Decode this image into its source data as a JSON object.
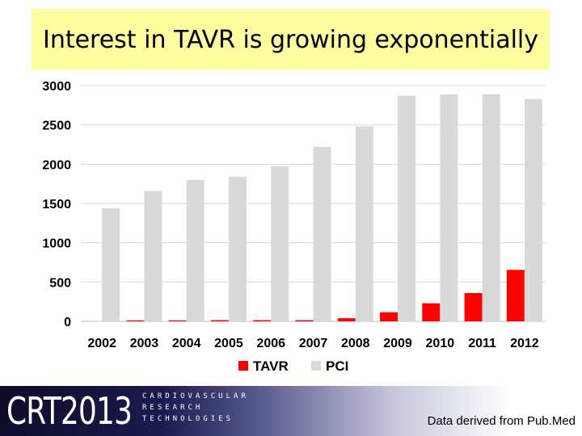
{
  "slide": {
    "title": "Interest in TAVR is growing exponentially",
    "source_note": "Data derived from Pub.Med"
  },
  "logo": {
    "main_text": "CRT2013",
    "sub_line_1": "CARDIOVASCULAR",
    "sub_line_2": "RESEARCH",
    "sub_line_3": "TECHNOLOGIES"
  },
  "colors": {
    "title_background": "#fefda0",
    "tavr": "#ff0000",
    "pci": "#d9d9d9",
    "grid": "#d9d9d9"
  },
  "chart_data": {
    "type": "bar",
    "title": "",
    "xlabel": "",
    "ylabel": "",
    "categories": [
      "2002",
      "2003",
      "2004",
      "2005",
      "2006",
      "2007",
      "2008",
      "2009",
      "2010",
      "2011",
      "2012"
    ],
    "series": [
      {
        "name": "TAVR",
        "color": "#ff0000",
        "values": [
          0,
          5,
          5,
          15,
          15,
          15,
          40,
          115,
          230,
          360,
          655
        ]
      },
      {
        "name": "PCI",
        "color": "#d9d9d9",
        "values": [
          1440,
          1660,
          1800,
          1840,
          1970,
          2220,
          2480,
          2870,
          2890,
          2890,
          2830
        ]
      }
    ],
    "ylim": [
      0,
      3000
    ],
    "yticks": [
      "0",
      "500",
      "1000",
      "1500",
      "2000",
      "2500",
      "3000"
    ],
    "grid": true,
    "legend": "bottom"
  }
}
